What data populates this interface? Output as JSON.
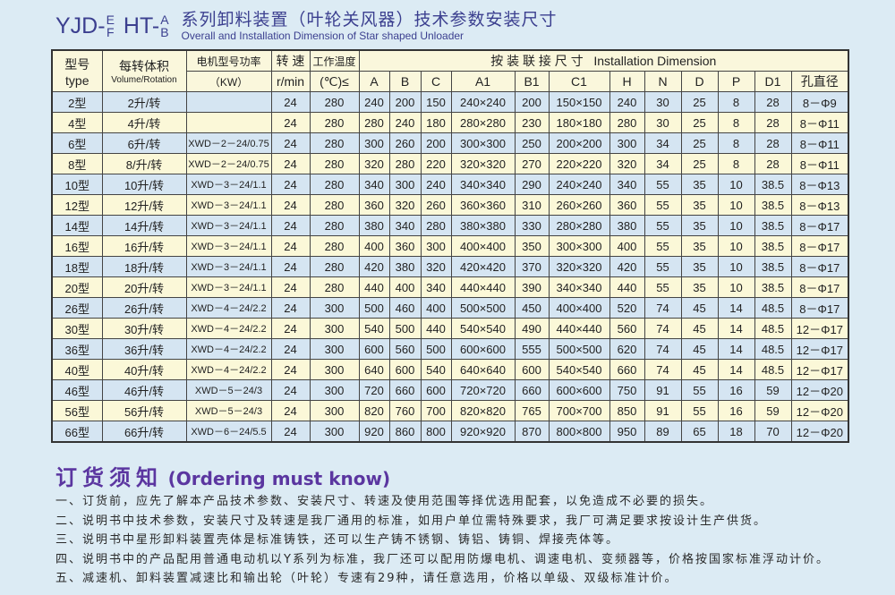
{
  "title": {
    "prefix": "YJD-",
    "frac1_top": "E",
    "frac1_bottom": "F",
    "mid": "HT-",
    "frac2_top": "A",
    "frac2_bottom": "B",
    "cn": "系列卸料装置（叶轮关风器）技术参数安装尺寸",
    "en": "Overall and Installation Dimension of Star shaped Unloader"
  },
  "table": {
    "head": {
      "type_cn": "型号",
      "type_en": "type",
      "volume_cn": "每转体积",
      "volume_en": "Volume/Rotation",
      "motor_cn": "电机型号功率",
      "motor_unit": "（KW）",
      "speed_cn": "转 速",
      "speed_unit": "r/min",
      "temp_cn": "工作温度",
      "temp_unit": "(℃)≤",
      "install": "按 装 联 接 尺 寸   Installation Dimension",
      "dims": [
        "A",
        "B",
        "C",
        "A1",
        "B1",
        "C1",
        "H",
        "N",
        "D",
        "P",
        "D1",
        "孔直径"
      ]
    },
    "rows": [
      [
        "2型",
        "2升/转",
        "",
        "24",
        "280",
        "240",
        "200",
        "150",
        "240×240",
        "200",
        "150×150",
        "240",
        "30",
        "25",
        "8",
        "28",
        "8－Φ9"
      ],
      [
        "4型",
        "4升/转",
        "",
        "24",
        "280",
        "280",
        "240",
        "180",
        "280×280",
        "230",
        "180×180",
        "280",
        "30",
        "25",
        "8",
        "28",
        "8－Φ11"
      ],
      [
        "6型",
        "6升/转",
        "XWD－2－24/0.75",
        "24",
        "280",
        "300",
        "260",
        "200",
        "300×300",
        "250",
        "200×200",
        "300",
        "34",
        "25",
        "8",
        "28",
        "8－Φ11"
      ],
      [
        "8型",
        "8/升/转",
        "XWD－2－24/0.75",
        "24",
        "280",
        "320",
        "280",
        "220",
        "320×320",
        "270",
        "220×220",
        "320",
        "34",
        "25",
        "8",
        "28",
        "8－Φ11"
      ],
      [
        "10型",
        "10升/转",
        "XWD－3－24/1.1",
        "24",
        "280",
        "340",
        "300",
        "240",
        "340×340",
        "290",
        "240×240",
        "340",
        "55",
        "35",
        "10",
        "38.5",
        "8－Φ13"
      ],
      [
        "12型",
        "12升/转",
        "XWD－3－24/1.1",
        "24",
        "280",
        "360",
        "320",
        "260",
        "360×360",
        "310",
        "260×260",
        "360",
        "55",
        "35",
        "10",
        "38.5",
        "8－Φ13"
      ],
      [
        "14型",
        "14升/转",
        "XWD－3－24/1.1",
        "24",
        "280",
        "380",
        "340",
        "280",
        "380×380",
        "330",
        "280×280",
        "380",
        "55",
        "35",
        "10",
        "38.5",
        "8－Φ17"
      ],
      [
        "16型",
        "16升/转",
        "XWD－3－24/1.1",
        "24",
        "280",
        "400",
        "360",
        "300",
        "400×400",
        "350",
        "300×300",
        "400",
        "55",
        "35",
        "10",
        "38.5",
        "8－Φ17"
      ],
      [
        "18型",
        "18升/转",
        "XWD－3－24/1.1",
        "24",
        "280",
        "420",
        "380",
        "320",
        "420×420",
        "370",
        "320×320",
        "420",
        "55",
        "35",
        "10",
        "38.5",
        "8－Φ17"
      ],
      [
        "20型",
        "20升/转",
        "XWD－3－24/1.1",
        "24",
        "280",
        "440",
        "400",
        "340",
        "440×440",
        "390",
        "340×340",
        "440",
        "55",
        "35",
        "10",
        "38.5",
        "8－Φ17"
      ],
      [
        "26型",
        "26升/转",
        "XWD－4－24/2.2",
        "24",
        "300",
        "500",
        "460",
        "400",
        "500×500",
        "450",
        "400×400",
        "520",
        "74",
        "45",
        "14",
        "48.5",
        "8－Φ17"
      ],
      [
        "30型",
        "30升/转",
        "XWD－4－24/2.2",
        "24",
        "300",
        "540",
        "500",
        "440",
        "540×540",
        "490",
        "440×440",
        "560",
        "74",
        "45",
        "14",
        "48.5",
        "12－Φ17"
      ],
      [
        "36型",
        "36升/转",
        "XWD－4－24/2.2",
        "24",
        "300",
        "600",
        "560",
        "500",
        "600×600",
        "555",
        "500×500",
        "620",
        "74",
        "45",
        "14",
        "48.5",
        "12－Φ17"
      ],
      [
        "40型",
        "40升/转",
        "XWD－4－24/2.2",
        "24",
        "300",
        "640",
        "600",
        "540",
        "640×640",
        "600",
        "540×540",
        "660",
        "74",
        "45",
        "14",
        "48.5",
        "12－Φ17"
      ],
      [
        "46型",
        "46升/转",
        "XWD－5－24/3",
        "24",
        "300",
        "720",
        "660",
        "600",
        "720×720",
        "660",
        "600×600",
        "750",
        "91",
        "55",
        "16",
        "59",
        "12－Φ20"
      ],
      [
        "56型",
        "56升/转",
        "XWD－5－24/3",
        "24",
        "300",
        "820",
        "760",
        "700",
        "820×820",
        "765",
        "700×700",
        "850",
        "91",
        "55",
        "16",
        "59",
        "12－Φ20"
      ],
      [
        "66型",
        "66升/转",
        "XWD－6－24/5.5",
        "24",
        "300",
        "920",
        "860",
        "800",
        "920×920",
        "870",
        "800×800",
        "950",
        "89",
        "65",
        "18",
        "70",
        "12－Φ20"
      ]
    ]
  },
  "ordering": {
    "title_cn": "订货须知",
    "title_en": "(Ordering must know)",
    "notes": [
      "一、订货前，应先了解本产品技术参数、安装尺寸、转速及使用范围等择优选用配套，以免造成不必要的损失。",
      "二、说明书中技术参数，安装尺寸及转速是我厂通用的标准，如用户单位需特殊要求，我厂可满足要求按设计生产供货。",
      "三、说明书中星形卸料装置壳体是标准铸铁，还可以生产铸不锈钢、铸铝、铸铜、焊接壳体等。",
      "四、说明书中的产品配用普通电动机以Y系列为标准，我厂还可以配用防爆电机、调速电机、变频器等，价格按国家标准浮动计价。",
      "五、减速机、卸料装置减速比和输出轮（叶轮）专速有29种，请任意选用，价格以单级、双级标准计价。"
    ]
  },
  "colors": {
    "title": "#3b3f8f",
    "ordering_title": "#5b36a0",
    "row_blue": "#d5e5f2",
    "row_yellow": "#fbf8d8",
    "background": "#dcebf4"
  }
}
